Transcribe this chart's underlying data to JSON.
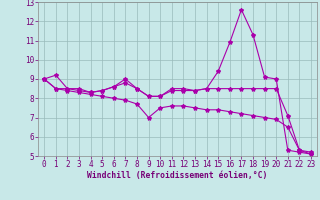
{
  "xlabel": "Windchill (Refroidissement éolien,°C)",
  "x": [
    0,
    1,
    2,
    3,
    4,
    5,
    6,
    7,
    8,
    9,
    10,
    11,
    12,
    13,
    14,
    15,
    16,
    17,
    18,
    19,
    20,
    21,
    22,
    23
  ],
  "line1": [
    9.0,
    9.2,
    8.5,
    8.5,
    8.3,
    8.4,
    8.6,
    8.8,
    8.5,
    8.1,
    8.1,
    8.5,
    8.5,
    8.4,
    8.5,
    9.4,
    10.9,
    12.6,
    11.3,
    9.1,
    9.0,
    5.3,
    5.2,
    5.1
  ],
  "line2": [
    9.0,
    8.5,
    8.5,
    8.4,
    8.3,
    8.4,
    8.6,
    9.0,
    8.5,
    8.1,
    8.1,
    8.4,
    8.4,
    8.4,
    8.5,
    8.5,
    8.5,
    8.5,
    8.5,
    8.5,
    8.5,
    7.1,
    5.3,
    5.2
  ],
  "line3": [
    9.0,
    8.5,
    8.4,
    8.3,
    8.2,
    8.1,
    8.0,
    7.9,
    7.7,
    7.0,
    7.5,
    7.6,
    7.6,
    7.5,
    7.4,
    7.4,
    7.3,
    7.2,
    7.1,
    7.0,
    6.9,
    6.5,
    5.3,
    5.1
  ],
  "line_color": "#aa00aa",
  "bg_color": "#c8e8e8",
  "grid_color": "#99bbbb",
  "ylim": [
    5,
    13
  ],
  "yticks": [
    5,
    6,
    7,
    8,
    9,
    10,
    11,
    12,
    13
  ],
  "xticks": [
    0,
    1,
    2,
    3,
    4,
    5,
    6,
    7,
    8,
    9,
    10,
    11,
    12,
    13,
    14,
    15,
    16,
    17,
    18,
    19,
    20,
    21,
    22,
    23
  ],
  "tick_fontsize": 5.5,
  "xlabel_fontsize": 5.8,
  "xlabel_color": "#770077",
  "tick_color": "#770077"
}
